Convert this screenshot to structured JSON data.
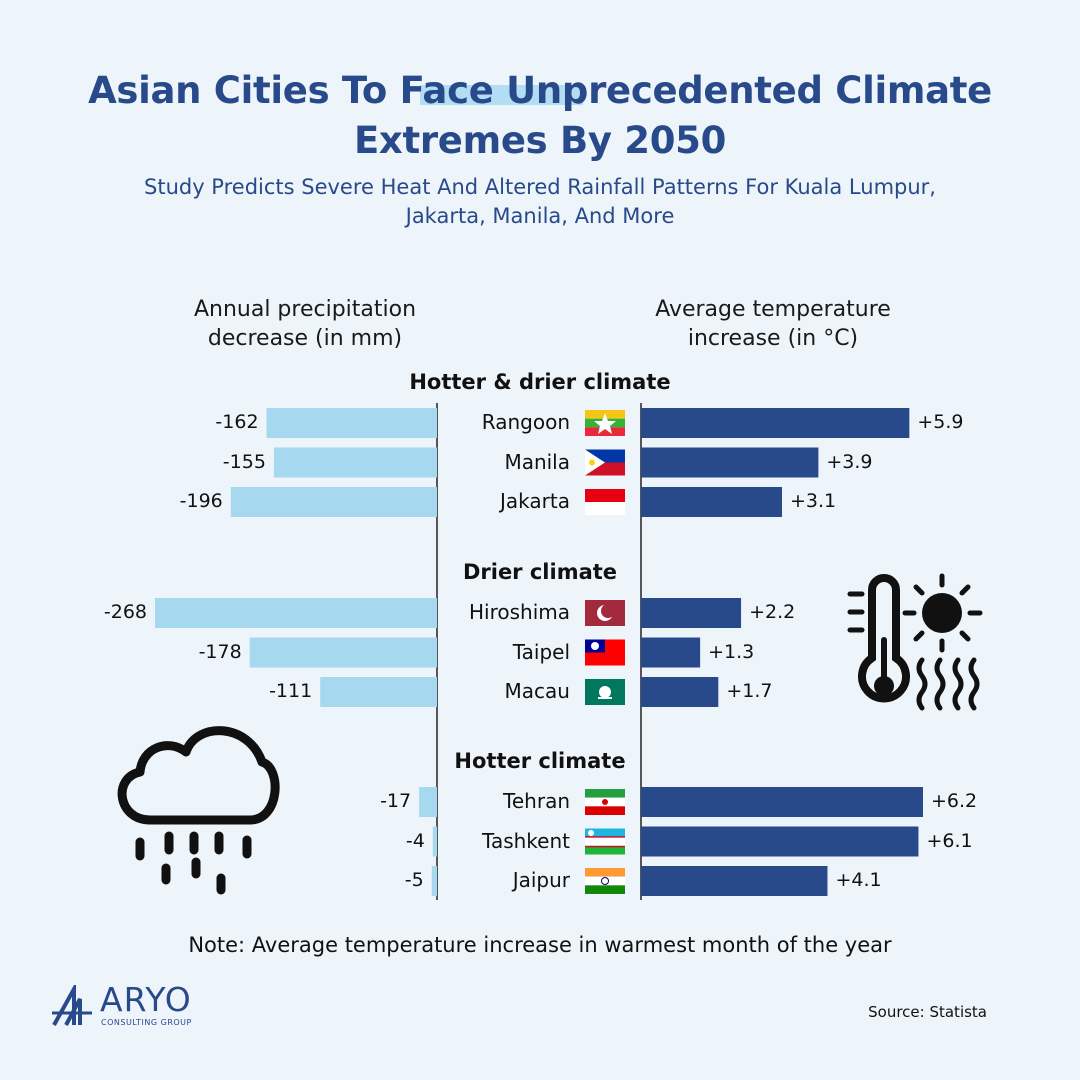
{
  "title_line1": "Asian Cities To Face Unprecedented Climate",
  "title_line2": "Extremes By 2050",
  "subtitle_line1": "Study Predicts Severe Heat And Altered Rainfall Patterns For Kuala Lumpur,",
  "subtitle_line2": "Jakarta, Manila, And More",
  "left_header_line1": "Annual precipitation",
  "left_header_line2": "decrease (in mm)",
  "right_header_line1": "Average temperature",
  "right_header_line2": "increase (in °C)",
  "note": "Note: Average temperature increase in warmest month of the year",
  "source": "Source: Statista",
  "logo": {
    "name": "ARYO",
    "subtitle": "CONSULTING GROUP"
  },
  "colors": {
    "title": "#28498a",
    "temp_bar": "#28498a",
    "precip_bar": "#a6d8f0",
    "background": "#eef5fa"
  },
  "icons": {
    "rain": "rain-cloud-icon",
    "heat": "thermometer-sun-icon"
  },
  "chart_data": {
    "type": "bar",
    "orientation": "diverging-horizontal",
    "groups": [
      {
        "label": "Hotter & drier climate",
        "cities": [
          {
            "name": "Rangoon",
            "flag": "Myanmar",
            "precip": -162,
            "precip_label": "-162",
            "temp": 5.9,
            "temp_label": "+5.9"
          },
          {
            "name": "Manila",
            "flag": "Philippines",
            "precip": -155,
            "precip_label": "-155",
            "temp": 3.9,
            "temp_label": "+3.9"
          },
          {
            "name": "Jakarta",
            "flag": "Indonesia",
            "precip": -196,
            "precip_label": "-196",
            "temp": 3.1,
            "temp_label": "+3.1"
          }
        ]
      },
      {
        "label": "Drier climate",
        "cities": [
          {
            "name": "Hiroshima",
            "flag": "Hiroshima",
            "precip": -268,
            "precip_label": "-268",
            "temp": 2.2,
            "temp_label": "+2.2"
          },
          {
            "name": "Taipel",
            "flag": "Taiwan",
            "precip": -178,
            "precip_label": "-178",
            "temp": 1.3,
            "temp_label": "+1.3"
          },
          {
            "name": "Macau",
            "flag": "Macau",
            "precip": -111,
            "precip_label": "-111",
            "temp": 1.7,
            "temp_label": "+1.7"
          }
        ]
      },
      {
        "label": "Hotter climate",
        "cities": [
          {
            "name": "Tehran",
            "flag": "Iran",
            "precip": -17,
            "precip_label": "-17",
            "temp": 6.2,
            "temp_label": "+6.2"
          },
          {
            "name": "Tashkent",
            "flag": "Uzbekistan",
            "precip": -4,
            "precip_label": "-4",
            "temp": 6.1,
            "temp_label": "+6.1"
          },
          {
            "name": "Jaipur",
            "flag": "India",
            "precip": -5,
            "precip_label": "-5",
            "temp": 4.1,
            "temp_label": "+4.1"
          }
        ]
      }
    ],
    "precip_range": [
      -268,
      0
    ],
    "temp_range": [
      0,
      6.2
    ]
  }
}
